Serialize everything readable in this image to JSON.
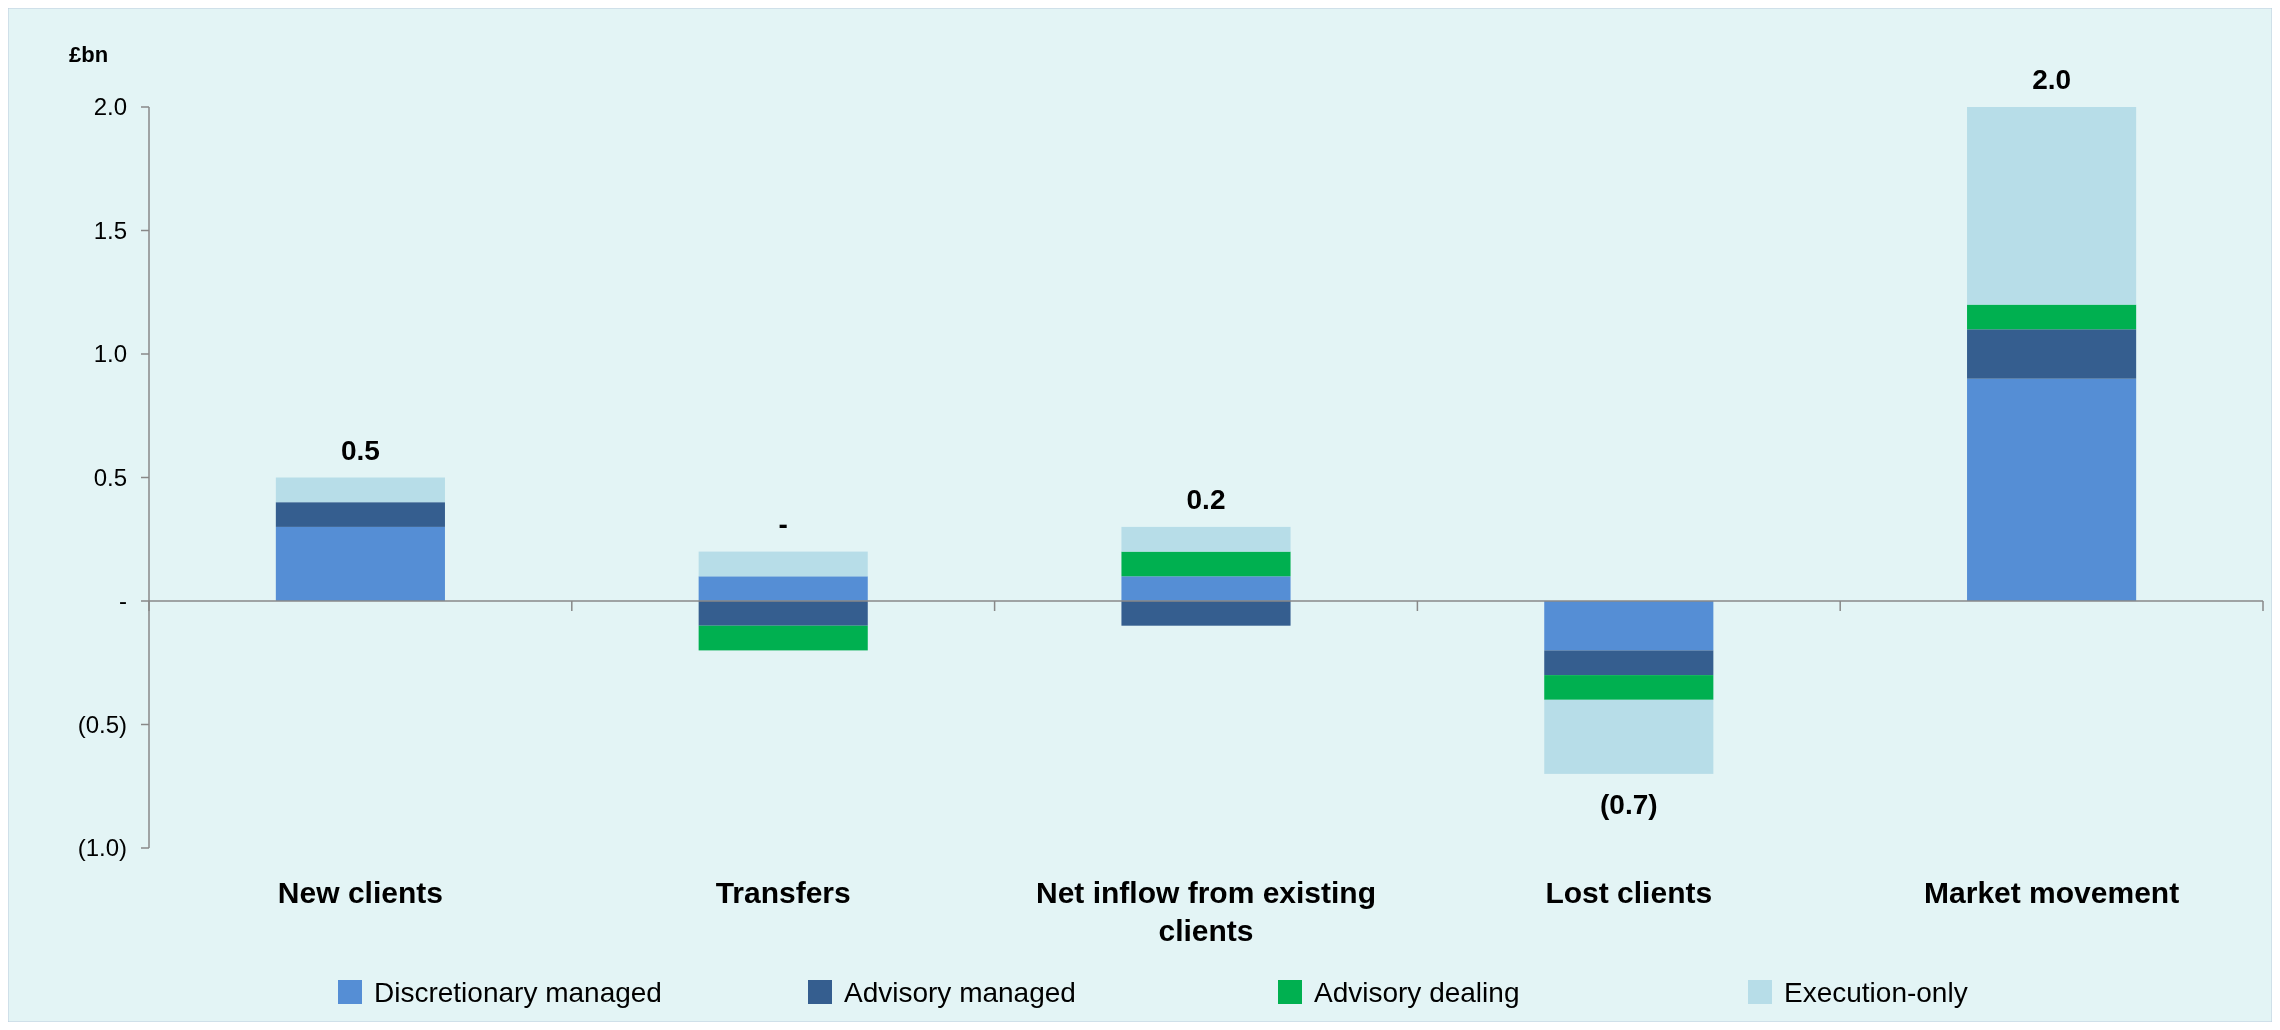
{
  "chart_data": {
    "type": "bar",
    "stacked": true,
    "ylabel": "£bn",
    "categories": [
      "New clients",
      "Transfers",
      "Net inflow from existing clients",
      "Lost clients",
      "Market movement"
    ],
    "series": [
      {
        "name": "Discretionary managed",
        "color": "#558ed5",
        "values": [
          0.3,
          0.1,
          0.1,
          -0.2,
          0.9
        ]
      },
      {
        "name": "Advisory managed",
        "color": "#355e8f",
        "values": [
          0.1,
          -0.1,
          -0.1,
          -0.1,
          0.2
        ]
      },
      {
        "name": "Advisory dealing",
        "color": "#00b050",
        "values": [
          0,
          -0.1,
          0.1,
          -0.1,
          0.1
        ]
      },
      {
        "name": "Execution-only",
        "color": "#b7dde8",
        "values": [
          0.1,
          0.1,
          0.1,
          -0.3,
          0.8
        ]
      }
    ],
    "totals": [
      "0.5",
      "-",
      "0.2",
      "(0.7)",
      "2.0"
    ],
    "ylim": [
      -1,
      2
    ],
    "yticks": [
      {
        "value": -1,
        "label": "(1.0)"
      },
      {
        "value": -0.5,
        "label": "(0.5)"
      },
      {
        "value": 0,
        "label": "-"
      },
      {
        "value": 0.5,
        "label": "0.5"
      },
      {
        "value": 1,
        "label": "1.0"
      },
      {
        "value": 1.5,
        "label": "1.5"
      },
      {
        "value": 2,
        "label": "2.0"
      }
    ],
    "legend": "bottom"
  }
}
